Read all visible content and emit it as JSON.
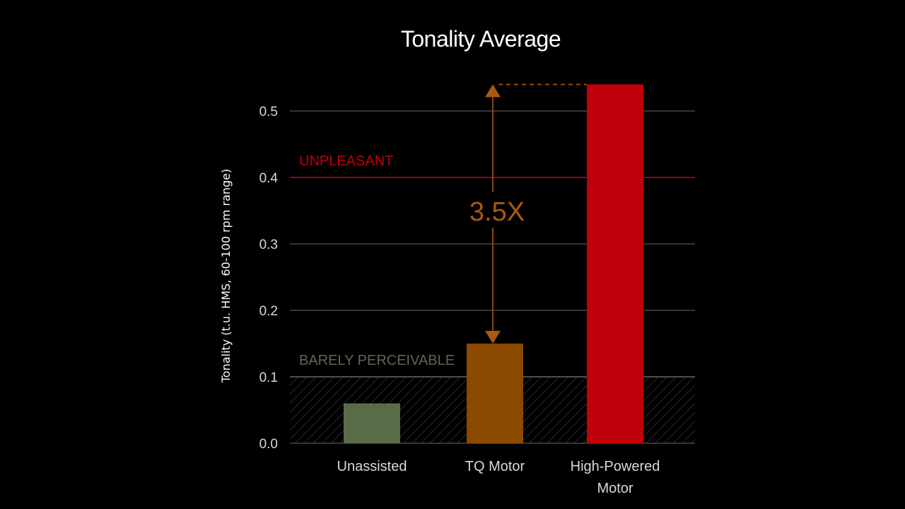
{
  "chart_data": {
    "type": "bar",
    "title": "Tonality Average",
    "ylabel": "Tonality (t.u. HMS, 60-100 rpm range)",
    "xlabel": "",
    "ylim": [
      0,
      0.54
    ],
    "yticks": [
      0.0,
      0.1,
      0.2,
      0.3,
      0.4,
      0.5
    ],
    "ytick_labels": [
      "0.0",
      "0.1",
      "0.2",
      "0.3",
      "0.4",
      "0.5"
    ],
    "grid": true,
    "categories": [
      "Unassisted",
      "TQ Motor",
      "High-Powered Motor"
    ],
    "category_lines": [
      [
        "Unassisted"
      ],
      [
        "TQ Motor"
      ],
      [
        "High-Powered",
        "Motor"
      ]
    ],
    "values": [
      0.06,
      0.15,
      0.54
    ],
    "bar_colors": [
      "#5a6b48",
      "#8b4a00",
      "#c0000a"
    ],
    "reference_lines": [
      {
        "label": "UNPLEASANT",
        "value": 0.4,
        "color": "#c0000a"
      },
      {
        "label": "BARELY PERCEIVABLE",
        "value": 0.1,
        "color": "#5f6650",
        "hatched_below": true
      }
    ],
    "annotation": {
      "label": "3.5X",
      "from_value": 0.15,
      "to_value": 0.54,
      "color": "#a85a10"
    }
  }
}
